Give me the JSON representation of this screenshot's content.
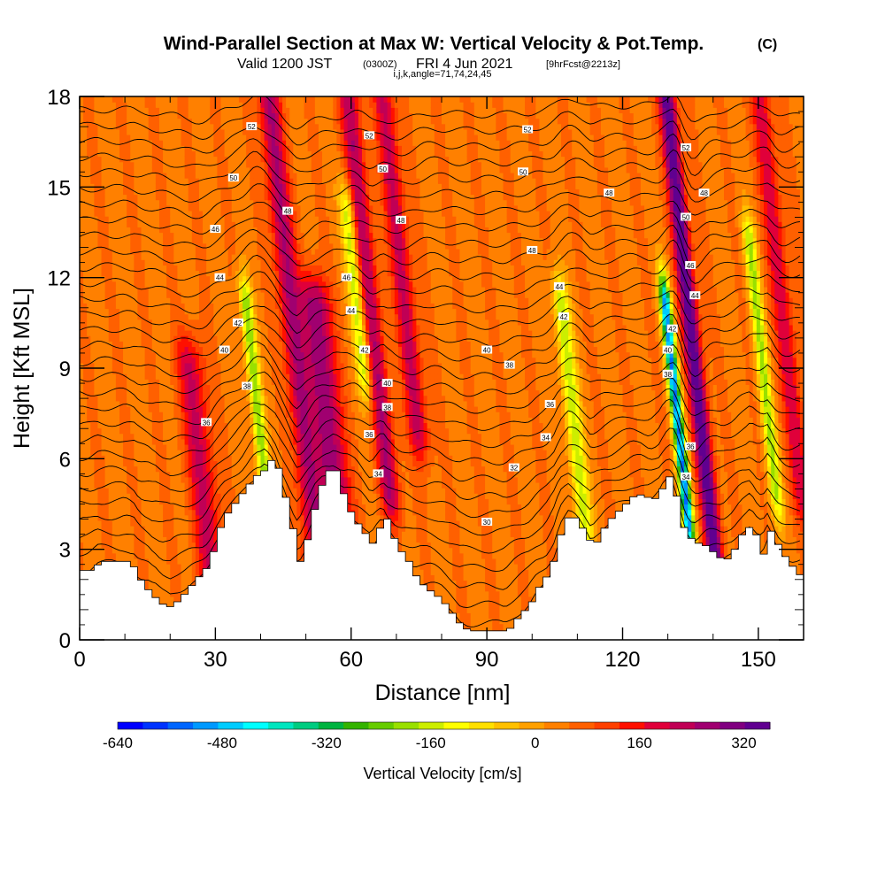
{
  "chart_data": {
    "type": "heatmap",
    "title": "Wind-Parallel Section at Max W: Vertical Velocity & Pot.Temp.",
    "title_suffix": "(C)",
    "subtitle_parts": [
      "Valid 1200 JST",
      "(0300Z)",
      "FRI 4 Jun 2021",
      "[9hrFcst@2213z]"
    ],
    "info_line": "i,j,k,angle=71,74,24,45",
    "xlabel": "Distance [nm]",
    "ylabel": "Height [Kft MSL]",
    "xlim": [
      0,
      160
    ],
    "ylim": [
      0,
      18
    ],
    "xticks": [
      "0",
      "30",
      "60",
      "90",
      "120",
      "150"
    ],
    "xtick_values": [
      0,
      30,
      60,
      90,
      120,
      150
    ],
    "yticks": [
      "0",
      "3",
      "6",
      "9",
      "12",
      "15",
      "18"
    ],
    "ytick_values": [
      0,
      3,
      6,
      9,
      12,
      15,
      18
    ],
    "colorbar": {
      "title": "Vertical Velocity [cm/s]",
      "range": [
        -640,
        360
      ],
      "tick_labels": [
        "-640",
        "-480",
        "-320",
        "-160",
        "0",
        "160",
        "320"
      ],
      "tick_values": [
        -640,
        -480,
        -320,
        -160,
        0,
        160,
        320
      ],
      "colors": [
        "#0000ff",
        "#0033ff",
        "#0066ff",
        "#0099ff",
        "#00ccff",
        "#00ffff",
        "#00e6bf",
        "#00cc80",
        "#00b340",
        "#33b300",
        "#66cc00",
        "#99e000",
        "#ccee00",
        "#ffff00",
        "#ffe000",
        "#ffc000",
        "#ffa000",
        "#ff8000",
        "#ff6000",
        "#ff4000",
        "#ff1000",
        "#e0003a",
        "#c00055",
        "#a00070",
        "#800080",
        "#600090"
      ]
    },
    "updraft_bands": [
      {
        "x": 27,
        "w": 3.0,
        "amp": 170,
        "zmin": 2,
        "zmax": 9
      },
      {
        "x": 47,
        "w": 2.4,
        "amp": 210,
        "zmin": 3,
        "zmax": 18
      },
      {
        "x": 55,
        "w": 3.2,
        "amp": 240,
        "zmin": 3,
        "zmax": 11
      },
      {
        "x": 64,
        "w": 2.2,
        "amp": 200,
        "zmin": 5,
        "zmax": 18
      },
      {
        "x": 71,
        "w": 2.2,
        "amp": 180,
        "zmin": 7,
        "zmax": 18
      },
      {
        "x": 135,
        "w": 1.8,
        "amp": 330,
        "zmin": 3,
        "zmax": 18
      },
      {
        "x": 155,
        "w": 2.2,
        "amp": 150,
        "zmin": 5,
        "zmax": 18
      }
    ],
    "downdraft_bands": [
      {
        "x": 39,
        "w": 1.4,
        "amp": -260,
        "zmin": 5,
        "zmax": 11
      },
      {
        "x": 61,
        "w": 1.6,
        "amp": -220,
        "zmin": 9,
        "zmax": 14
      },
      {
        "x": 109,
        "w": 1.8,
        "amp": -220,
        "zmin": 4,
        "zmax": 11
      },
      {
        "x": 132,
        "w": 1.2,
        "amp": -560,
        "zmin": 4,
        "zmax": 11
      },
      {
        "x": 151,
        "w": 1.4,
        "amp": -230,
        "zmin": 5,
        "zmax": 13
      }
    ],
    "terrain_kft": [
      [
        0,
        2.3
      ],
      [
        2,
        2.3
      ],
      [
        4,
        2.6
      ],
      [
        10,
        2.6
      ],
      [
        12,
        2.3
      ],
      [
        13,
        1.9
      ],
      [
        14,
        1.7
      ],
      [
        15,
        1.6
      ],
      [
        16,
        1.4
      ],
      [
        17,
        1.3
      ],
      [
        18,
        1.1
      ],
      [
        20,
        1.1
      ],
      [
        21,
        1.3
      ],
      [
        23,
        1.6
      ],
      [
        25,
        2.0
      ],
      [
        27,
        2.3
      ],
      [
        28,
        2.6
      ],
      [
        29,
        3.0
      ],
      [
        30,
        3.6
      ],
      [
        32,
        4.2
      ],
      [
        34,
        4.6
      ],
      [
        36,
        5.0
      ],
      [
        38,
        5.4
      ],
      [
        40,
        5.6
      ],
      [
        41,
        6.0
      ],
      [
        43,
        5.8
      ],
      [
        44,
        5.2
      ],
      [
        45,
        4.6
      ],
      [
        46,
        4.0
      ],
      [
        47,
        3.2
      ],
      [
        48,
        2.6
      ],
      [
        49,
        2.9
      ],
      [
        50,
        3.6
      ],
      [
        51,
        4.2
      ],
      [
        52,
        4.8
      ],
      [
        54,
        5.6
      ],
      [
        56,
        5.6
      ],
      [
        57,
        5.2
      ],
      [
        58,
        4.6
      ],
      [
        60,
        4.0
      ],
      [
        62,
        3.6
      ],
      [
        64,
        3.2
      ],
      [
        65,
        3.4
      ],
      [
        66,
        3.9
      ],
      [
        67,
        4.1
      ],
      [
        68,
        3.6
      ],
      [
        70,
        3.0
      ],
      [
        72,
        2.6
      ],
      [
        74,
        2.0
      ],
      [
        76,
        1.7
      ],
      [
        78,
        1.5
      ],
      [
        80,
        1.2
      ],
      [
        82,
        0.8
      ],
      [
        84,
        0.4
      ],
      [
        86,
        0.3
      ],
      [
        90,
        0.3
      ],
      [
        94,
        0.3
      ],
      [
        96,
        0.7
      ],
      [
        99,
        1.2
      ],
      [
        101,
        1.8
      ],
      [
        103,
        2.2
      ],
      [
        105,
        3.0
      ],
      [
        106,
        3.8
      ],
      [
        108,
        4.2
      ],
      [
        110,
        3.8
      ],
      [
        112,
        3.3
      ],
      [
        113,
        3.0
      ],
      [
        114,
        3.4
      ],
      [
        116,
        3.9
      ],
      [
        118,
        4.2
      ],
      [
        120,
        4.5
      ],
      [
        122,
        4.8
      ],
      [
        124,
        4.8
      ],
      [
        126,
        4.6
      ],
      [
        128,
        5.0
      ],
      [
        129,
        5.4
      ],
      [
        130,
        5.4
      ],
      [
        131,
        4.9
      ],
      [
        132,
        4.2
      ],
      [
        133,
        3.6
      ],
      [
        134,
        3.4
      ],
      [
        136,
        3.2
      ],
      [
        138,
        3.1
      ],
      [
        140,
        2.8
      ],
      [
        142,
        2.6
      ],
      [
        144,
        3.0
      ],
      [
        146,
        3.6
      ],
      [
        148,
        3.8
      ],
      [
        149,
        3.4
      ],
      [
        150,
        2.8
      ],
      [
        151,
        2.9
      ],
      [
        152,
        3.6
      ],
      [
        153,
        3.4
      ],
      [
        154,
        3.0
      ],
      [
        156,
        2.6
      ],
      [
        158,
        2.2
      ],
      [
        160,
        2.0
      ]
    ],
    "theta_contours": {
      "levels_c": [
        30,
        32,
        34,
        36,
        38,
        40,
        42,
        44,
        46,
        48,
        50,
        52
      ],
      "labels": [
        {
          "text": "52",
          "x": 38,
          "z": 17.0
        },
        {
          "text": "50",
          "x": 34,
          "z": 15.3
        },
        {
          "text": "46",
          "x": 30,
          "z": 13.6
        },
        {
          "text": "44",
          "x": 31,
          "z": 12.0
        },
        {
          "text": "42",
          "x": 35,
          "z": 10.5
        },
        {
          "text": "40",
          "x": 32,
          "z": 9.6
        },
        {
          "text": "38",
          "x": 37,
          "z": 8.4
        },
        {
          "text": "36",
          "x": 28,
          "z": 7.2
        },
        {
          "text": "48",
          "x": 46,
          "z": 14.2
        },
        {
          "text": "52",
          "x": 64,
          "z": 16.7
        },
        {
          "text": "50",
          "x": 67,
          "z": 15.6
        },
        {
          "text": "48",
          "x": 71,
          "z": 13.9
        },
        {
          "text": "46",
          "x": 59,
          "z": 12.0
        },
        {
          "text": "44",
          "x": 60,
          "z": 10.9
        },
        {
          "text": "42",
          "x": 63,
          "z": 9.6
        },
        {
          "text": "40",
          "x": 68,
          "z": 8.5
        },
        {
          "text": "38",
          "x": 68,
          "z": 7.7
        },
        {
          "text": "36",
          "x": 64,
          "z": 6.8
        },
        {
          "text": "34",
          "x": 66,
          "z": 5.5
        },
        {
          "text": "52",
          "x": 99,
          "z": 16.9
        },
        {
          "text": "50",
          "x": 98,
          "z": 15.5
        },
        {
          "text": "48",
          "x": 117,
          "z": 14.8
        },
        {
          "text": "48",
          "x": 100,
          "z": 12.9
        },
        {
          "text": "44",
          "x": 106,
          "z": 11.7
        },
        {
          "text": "42",
          "x": 107,
          "z": 10.7
        },
        {
          "text": "40",
          "x": 90,
          "z": 9.6
        },
        {
          "text": "38",
          "x": 95,
          "z": 9.1
        },
        {
          "text": "36",
          "x": 104,
          "z": 7.8
        },
        {
          "text": "34",
          "x": 103,
          "z": 6.7
        },
        {
          "text": "32",
          "x": 96,
          "z": 5.7
        },
        {
          "text": "30",
          "x": 90,
          "z": 3.9
        },
        {
          "text": "52",
          "x": 134,
          "z": 16.3
        },
        {
          "text": "50",
          "x": 134,
          "z": 14.0
        },
        {
          "text": "48",
          "x": 138,
          "z": 14.8
        },
        {
          "text": "46",
          "x": 135,
          "z": 12.4
        },
        {
          "text": "44",
          "x": 136,
          "z": 11.4
        },
        {
          "text": "42",
          "x": 131,
          "z": 10.3
        },
        {
          "text": "40",
          "x": 130,
          "z": 9.6
        },
        {
          "text": "38",
          "x": 130,
          "z": 8.8
        },
        {
          "text": "36",
          "x": 135,
          "z": 6.4
        },
        {
          "text": "34",
          "x": 134,
          "z": 5.4
        }
      ]
    }
  }
}
